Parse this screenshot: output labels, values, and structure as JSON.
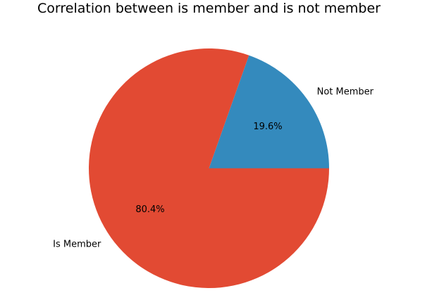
{
  "chart_data": {
    "type": "pie",
    "title": "Correlation between is member and is not member",
    "slices": [
      {
        "label": "Not Member",
        "value": 19.6,
        "pct_label": "19.6%",
        "color": "#348abd"
      },
      {
        "label": "Is Member",
        "value": 80.4,
        "pct_label": "80.4%",
        "color": "#e24a33"
      }
    ]
  }
}
